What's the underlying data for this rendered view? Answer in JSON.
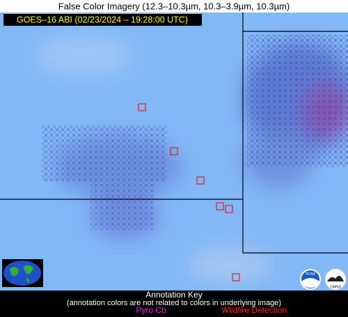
{
  "header": {
    "title": "False Color Imagery (12.3–10.3µm, 10.3–3.9µm, 10.3µm)",
    "timestamp": "GOES–16 ABI (02/23/2024 – 19:28:00 UTC)"
  },
  "footer": {
    "title": "Annotation Key",
    "note": "(annotation colors are not related to colors in underlying image)",
    "legend": [
      "Pyro Cb",
      "Wildfire Detection"
    ]
  },
  "logos": [
    "NOAA",
    "CIMSS"
  ]
}
